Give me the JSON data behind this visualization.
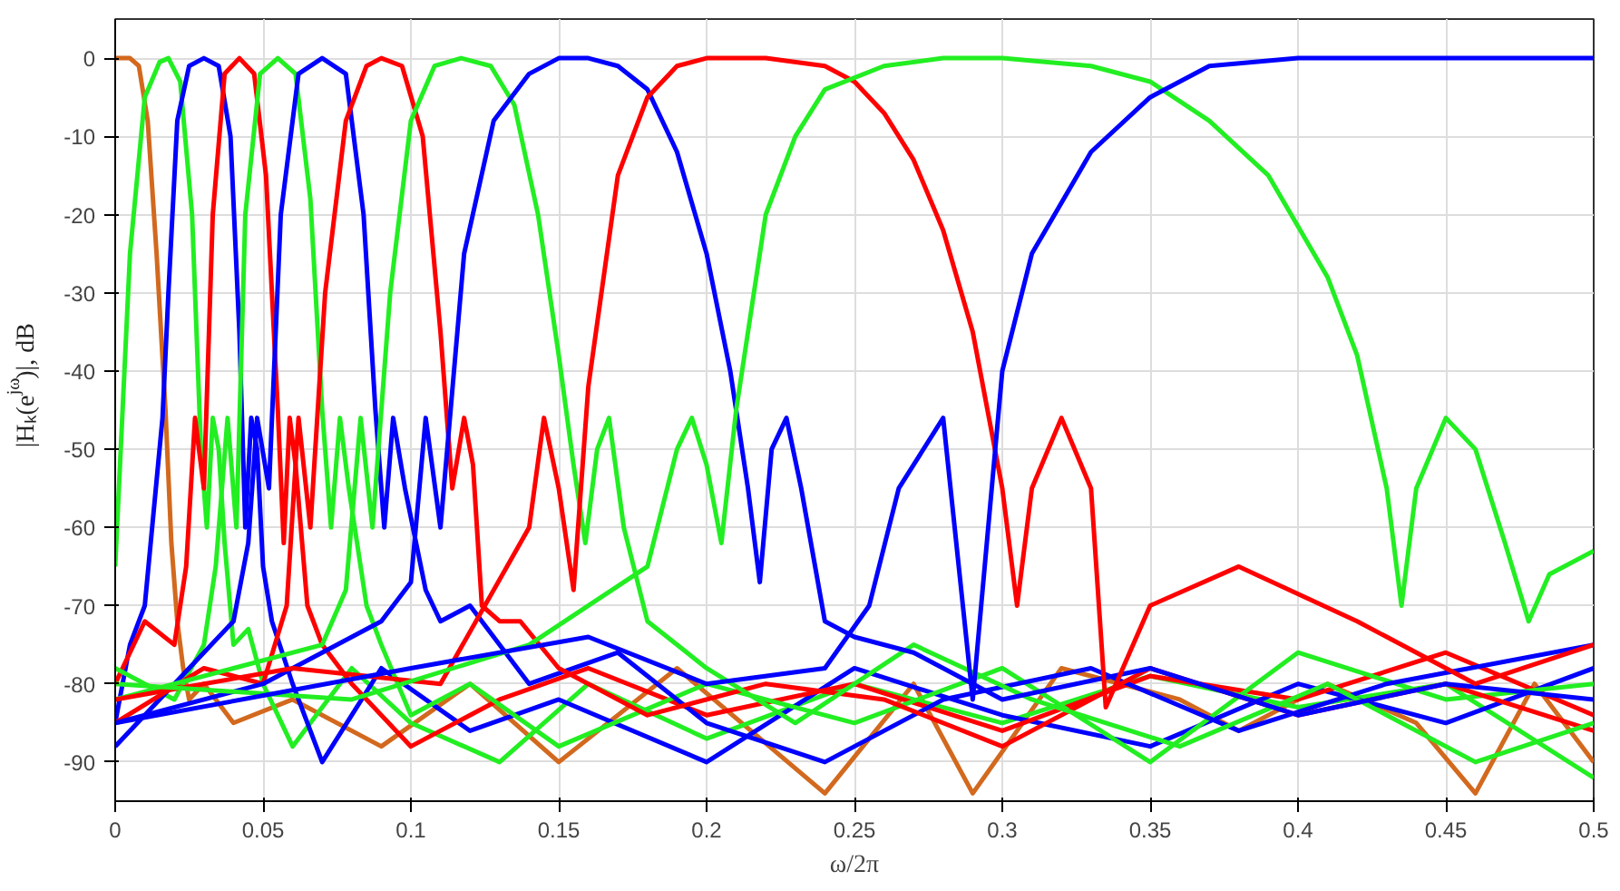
{
  "chart_data": {
    "type": "line",
    "xlabel": "ω/2π",
    "ylabel": "|Hₖ(e$^{jω}$)|, dB",
    "xlim": [
      0,
      0.5
    ],
    "ylim": [
      -95,
      5
    ],
    "xticks": [
      0,
      0.05,
      0.1,
      0.15,
      0.2,
      0.25,
      0.3,
      0.35,
      0.4,
      0.45,
      0.5
    ],
    "yticks": [
      -90,
      -80,
      -70,
      -60,
      -50,
      -40,
      -30,
      -20,
      -10,
      0
    ],
    "grid": true,
    "line_style": "solid",
    "series": [
      {
        "color": "#d2691e",
        "x": [
          0,
          0.005,
          0.008,
          0.011,
          0.014,
          0.017,
          0.019,
          0.021,
          0.023,
          0.025,
          0.03,
          0.04,
          0.06,
          0.09,
          0.12,
          0.15,
          0.19,
          0.24,
          0.27,
          0.29,
          0.32,
          0.36,
          0.38,
          0.41,
          0.44,
          0.46,
          0.48,
          0.5
        ],
        "values": [
          0,
          0,
          -1,
          -8,
          -25,
          -45,
          -62,
          -72,
          -78,
          -82,
          -80,
          -85,
          -82,
          -88,
          -80,
          -90,
          -78,
          -94,
          -80,
          -94,
          -78,
          -82,
          -86,
          -80,
          -85,
          -94,
          -80,
          -90
        ]
      },
      {
        "color": "#22ee22",
        "x": [
          0,
          0.005,
          0.01,
          0.015,
          0.018,
          0.022,
          0.026,
          0.029,
          0.031,
          0.033,
          0.035,
          0.037,
          0.04,
          0.045,
          0.05,
          0.06,
          0.08,
          0.1,
          0.13,
          0.16,
          0.2,
          0.25,
          0.3,
          0.35,
          0.4,
          0.45,
          0.5
        ],
        "values": [
          -65,
          -25,
          -5,
          -0.5,
          0,
          -3,
          -20,
          -50,
          -60,
          -46,
          -50,
          -62,
          -75,
          -73,
          -80,
          -88,
          -78,
          -85,
          -90,
          -80,
          -87,
          -80,
          -85,
          -79,
          -83,
          -80,
          -92
        ]
      },
      {
        "color": "#0000ff",
        "x": [
          0,
          0.005,
          0.01,
          0.013,
          0.016,
          0.018,
          0.021,
          0.025,
          0.03,
          0.035,
          0.039,
          0.042,
          0.044,
          0.046,
          0.048,
          0.05,
          0.053,
          0.06,
          0.07,
          0.09,
          0.12,
          0.15,
          0.2,
          0.25,
          0.3,
          0.35,
          0.4,
          0.45,
          0.5
        ],
        "values": [
          -85,
          -75,
          -70,
          -58,
          -46,
          -30,
          -8,
          -1,
          0,
          -1,
          -10,
          -35,
          -60,
          -46,
          -50,
          -65,
          -72,
          -80,
          -90,
          -78,
          -86,
          -82,
          -90,
          -78,
          -84,
          -88,
          -80,
          -85,
          -78
        ]
      },
      {
        "color": "#ff0000",
        "x": [
          0,
          0.01,
          0.02,
          0.024,
          0.027,
          0.03,
          0.033,
          0.037,
          0.042,
          0.047,
          0.051,
          0.055,
          0.057,
          0.059,
          0.061,
          0.065,
          0.07,
          0.08,
          0.1,
          0.13,
          0.16,
          0.2,
          0.25,
          0.3,
          0.35,
          0.4,
          0.45,
          0.5
        ],
        "values": [
          -80,
          -72,
          -75,
          -65,
          -46,
          -55,
          -20,
          -2,
          0,
          -2,
          -15,
          -45,
          -62,
          -46,
          -52,
          -70,
          -75,
          -80,
          -88,
          -82,
          -78,
          -84,
          -80,
          -86,
          -79,
          -82,
          -76,
          -84
        ]
      },
      {
        "color": "#22ee22",
        "x": [
          0,
          0.02,
          0.03,
          0.034,
          0.038,
          0.041,
          0.044,
          0.049,
          0.055,
          0.061,
          0.066,
          0.07,
          0.073,
          0.076,
          0.079,
          0.085,
          0.09,
          0.1,
          0.12,
          0.15,
          0.2,
          0.25,
          0.3,
          0.35,
          0.4,
          0.45,
          0.5
        ],
        "values": [
          -78,
          -82,
          -75,
          -65,
          -46,
          -60,
          -20,
          -2,
          0,
          -2,
          -18,
          -45,
          -60,
          -46,
          -55,
          -70,
          -75,
          -84,
          -80,
          -88,
          -80,
          -85,
          -78,
          -90,
          -76,
          -82,
          -80
        ]
      },
      {
        "color": "#0000ff",
        "x": [
          0,
          0.02,
          0.04,
          0.045,
          0.048,
          0.052,
          0.056,
          0.062,
          0.07,
          0.078,
          0.084,
          0.088,
          0.091,
          0.094,
          0.098,
          0.105,
          0.11,
          0.12,
          0.14,
          0.17,
          0.2,
          0.24,
          0.28,
          0.33,
          0.38,
          0.43,
          0.5
        ],
        "values": [
          -88,
          -80,
          -72,
          -62,
          -46,
          -55,
          -20,
          -2,
          0,
          -2,
          -20,
          -45,
          -60,
          -46,
          -55,
          -68,
          -72,
          -70,
          -80,
          -76,
          -85,
          -90,
          -82,
          -78,
          -86,
          -80,
          -75
        ]
      },
      {
        "color": "#ff0000",
        "x": [
          0,
          0.03,
          0.05,
          0.058,
          0.062,
          0.066,
          0.071,
          0.078,
          0.085,
          0.09,
          0.097,
          0.104,
          0.11,
          0.114,
          0.118,
          0.121,
          0.124,
          0.13,
          0.137,
          0.15,
          0.18,
          0.22,
          0.26,
          0.3,
          0.35,
          0.4,
          0.45,
          0.5
        ],
        "values": [
          -85,
          -78,
          -80,
          -70,
          -46,
          -60,
          -30,
          -8,
          -1,
          0,
          -1,
          -10,
          -35,
          -55,
          -46,
          -52,
          -70,
          -72,
          -72,
          -78,
          -84,
          -80,
          -82,
          -88,
          -78,
          -84,
          -80,
          -86
        ]
      },
      {
        "color": "#22ee22",
        "x": [
          0,
          0.04,
          0.07,
          0.078,
          0.083,
          0.087,
          0.093,
          0.1,
          0.108,
          0.117,
          0.127,
          0.135,
          0.143,
          0.15,
          0.155,
          0.159,
          0.163,
          0.167,
          0.172,
          0.18,
          0.2,
          0.23,
          0.27,
          0.31,
          0.36,
          0.41,
          0.46,
          0.5
        ],
        "values": [
          -82,
          -78,
          -75,
          -68,
          -46,
          -60,
          -30,
          -8,
          -1,
          0,
          -1,
          -6,
          -20,
          -38,
          -52,
          -62,
          -50,
          -46,
          -60,
          -72,
          -78,
          -85,
          -75,
          -82,
          -88,
          -80,
          -90,
          -85
        ]
      },
      {
        "color": "#0000ff",
        "x": [
          0,
          0.05,
          0.09,
          0.1,
          0.105,
          0.11,
          0.118,
          0.128,
          0.14,
          0.15,
          0.16,
          0.17,
          0.18,
          0.19,
          0.2,
          0.208,
          0.214,
          0.218,
          0.222,
          0.227,
          0.232,
          0.24,
          0.25,
          0.27,
          0.3,
          0.35,
          0.4,
          0.45,
          0.5
        ],
        "values": [
          -85,
          -80,
          -72,
          -67,
          -46,
          -60,
          -25,
          -8,
          -2,
          0,
          0,
          -1,
          -4,
          -12,
          -25,
          -40,
          -55,
          -67,
          -50,
          -46,
          -55,
          -72,
          -74,
          -76,
          -82,
          -78,
          -84,
          -80,
          -82
        ]
      },
      {
        "color": "#ff0000",
        "x": [
          0,
          0.06,
          0.11,
          0.14,
          0.145,
          0.15,
          0.155,
          0.16,
          0.17,
          0.18,
          0.19,
          0.2,
          0.22,
          0.24,
          0.25,
          0.26,
          0.27,
          0.28,
          0.29,
          0.3,
          0.305,
          0.31,
          0.32,
          0.33,
          0.335,
          0.35,
          0.38,
          0.42,
          0.46,
          0.5
        ],
        "values": [
          -82,
          -78,
          -80,
          -60,
          -46,
          -55,
          -68,
          -42,
          -15,
          -5,
          -1,
          0,
          0,
          -1,
          -3,
          -7,
          -13,
          -22,
          -35,
          -55,
          -70,
          -55,
          -46,
          -55,
          -83,
          -70,
          -65,
          -72,
          -80,
          -75
        ]
      },
      {
        "color": "#22ee22",
        "x": [
          0,
          0.08,
          0.14,
          0.18,
          0.19,
          0.195,
          0.2,
          0.205,
          0.21,
          0.22,
          0.23,
          0.24,
          0.26,
          0.28,
          0.3,
          0.33,
          0.35,
          0.37,
          0.39,
          0.41,
          0.42,
          0.43,
          0.435,
          0.44,
          0.45,
          0.46,
          0.47,
          0.478,
          0.485,
          0.5
        ],
        "values": [
          -80,
          -82,
          -75,
          -65,
          -50,
          -46,
          -52,
          -62,
          -45,
          -20,
          -10,
          -4,
          -1,
          0,
          0,
          -1,
          -3,
          -8,
          -15,
          -28,
          -38,
          -55,
          -70,
          -55,
          -46,
          -50,
          -62,
          -72,
          -66,
          -63
        ]
      },
      {
        "color": "#0000ff",
        "x": [
          0,
          0.1,
          0.16,
          0.2,
          0.24,
          0.255,
          0.265,
          0.28,
          0.29,
          0.3,
          0.31,
          0.33,
          0.35,
          0.37,
          0.4,
          0.45,
          0.5
        ],
        "values": [
          -85,
          -78,
          -74,
          -80,
          -78,
          -70,
          -55,
          -46,
          -82,
          -40,
          -25,
          -12,
          -5,
          -1,
          0,
          0,
          0
        ]
      }
    ]
  }
}
